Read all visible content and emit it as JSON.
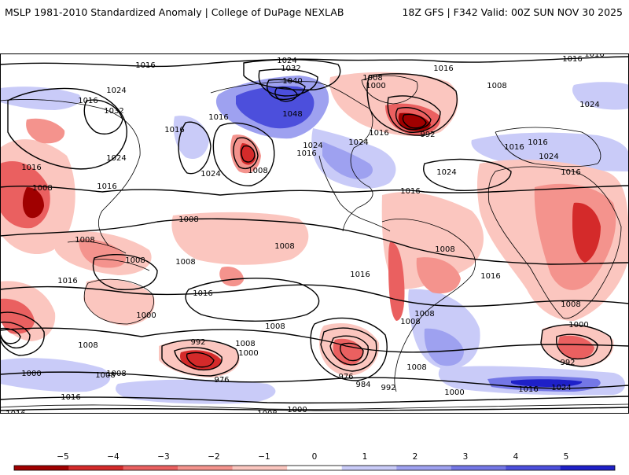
{
  "title": {
    "left": "MSLP 1981-2010 Standardized Anomaly | College of DuPage NEXLAB",
    "right": "18Z GFS | F342 Valid: 00Z SUN NOV 30 2025"
  },
  "colors": {
    "neg5": "#a00000",
    "neg4": "#d42a2a",
    "neg3": "#ea6060",
    "neg2": "#f4938d",
    "neg1": "#fbc6bf",
    "pos1": "#c9cbf8",
    "pos2": "#9ea1f0",
    "pos3": "#7477e6",
    "pos4": "#4c4fdc",
    "pos5": "#1e20c8"
  },
  "colorbar": {
    "ticks": [
      "−5",
      "−4",
      "−3",
      "−2",
      "−1",
      "0",
      "1",
      "2",
      "3",
      "4",
      "5"
    ]
  },
  "isobar_labels": [
    "1024",
    "1016",
    "1016",
    "1016",
    "1024",
    "1008",
    "1000",
    "1016",
    "1016",
    "1024",
    "1032",
    "1040",
    "1048",
    "1016",
    "1032",
    "1016",
    "1016",
    "1024",
    "1024",
    "1024",
    "1016",
    "1024",
    "1024",
    "1008",
    "1016",
    "1008",
    "1008",
    "1008",
    "1008",
    "1008",
    "992",
    "1016",
    "1024",
    "1016",
    "1016",
    "1008",
    "1008",
    "1008",
    "1016",
    "1016",
    "1016",
    "1016",
    "1008",
    "1016",
    "1016",
    "1008",
    "1008",
    "1000",
    "1008",
    "1008",
    "1000",
    "992",
    "1008",
    "1000",
    "992",
    "976",
    "1008",
    "976",
    "984",
    "992",
    "1008",
    "1000",
    "1008",
    "1016",
    "1016",
    "1000",
    "1008",
    "1000",
    "1024",
    "1016"
  ]
}
